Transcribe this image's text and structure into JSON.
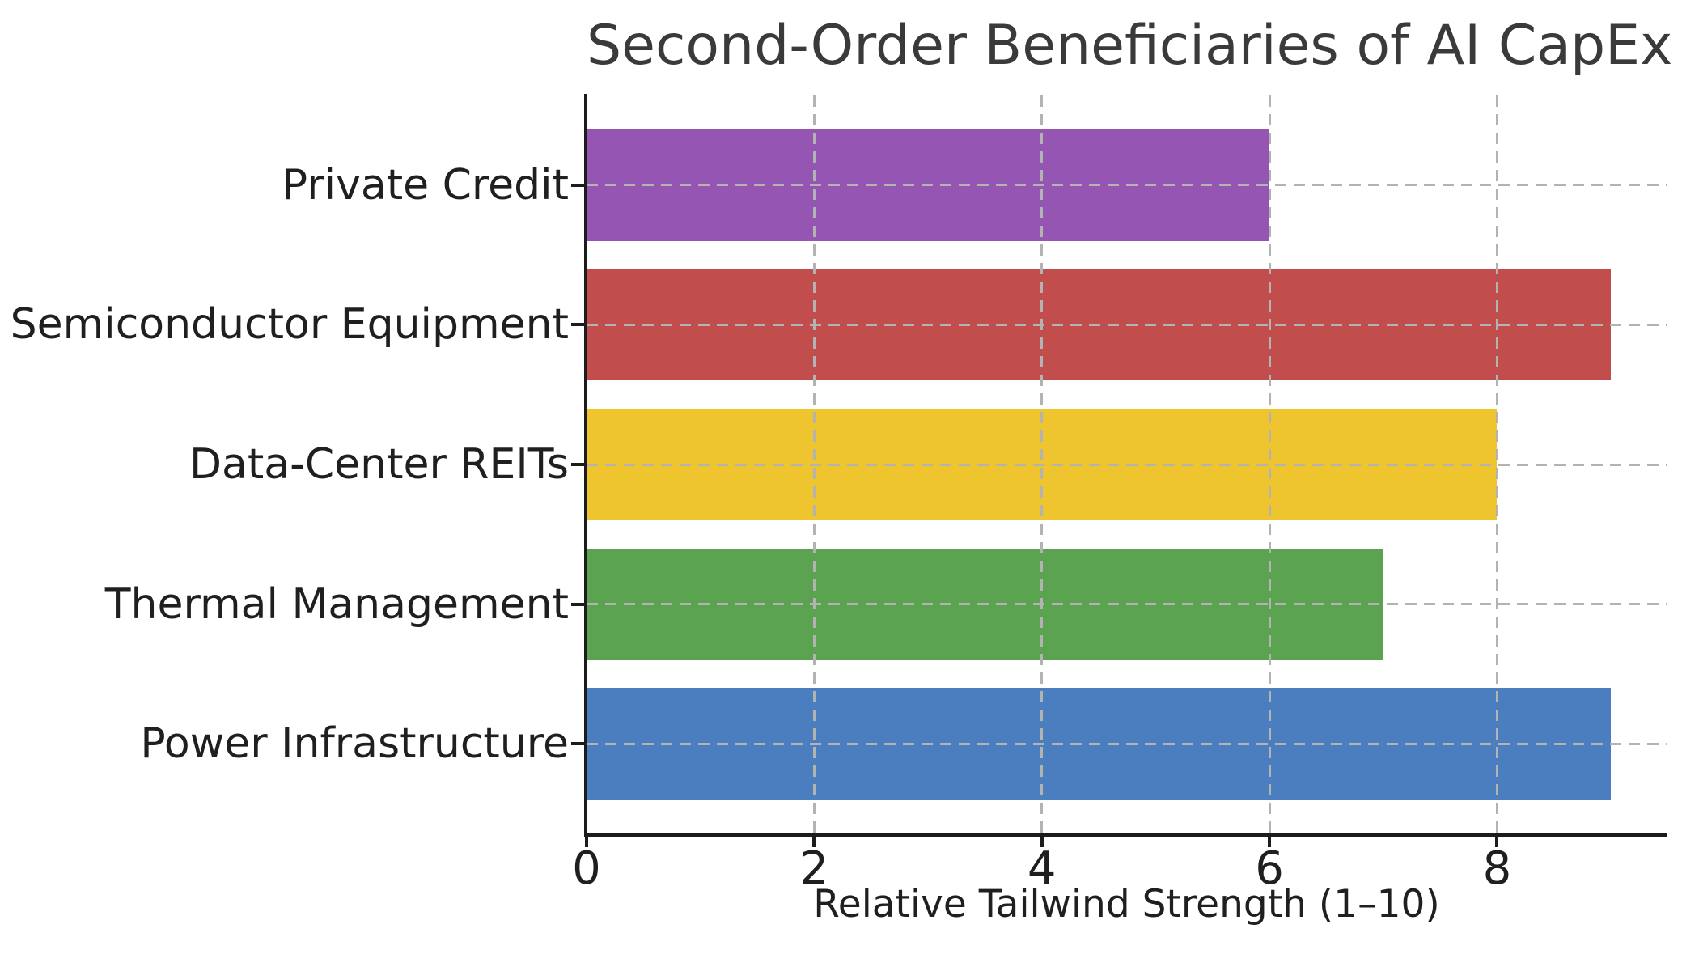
{
  "page": {
    "background": "#ffffff"
  },
  "chart_data": {
    "type": "bar",
    "orientation": "horizontal",
    "title": "Second-Order Beneficiaries of AI CapEx",
    "xlabel": "Relative Tailwind Strength (1–10)",
    "ylabel": "",
    "categories": [
      "Private Credit",
      "Semiconductor Equipment",
      "Data-Center REITs",
      "Thermal Management",
      "Power Infrastructure"
    ],
    "values": [
      6,
      9,
      8,
      7,
      9
    ],
    "bar_colors": [
      "#9455b3",
      "#c14d4d",
      "#eec42f",
      "#5ca351",
      "#4a7ebf"
    ],
    "x_ticks": [
      0,
      2,
      4,
      6,
      8
    ],
    "x_tick_labels": [
      "0",
      "2",
      "4",
      "6",
      "8"
    ],
    "xlim": [
      0,
      9.49
    ],
    "bar_thickness_units": 0.8,
    "grid": {
      "style": "dashed",
      "color": "#b3b3b3",
      "axes": "both",
      "on": true
    },
    "legend": null,
    "styles": {
      "axis_color": "#1c1c1c",
      "title_color": "#3a3a3a",
      "label_color": "#1f1f1f"
    }
  }
}
